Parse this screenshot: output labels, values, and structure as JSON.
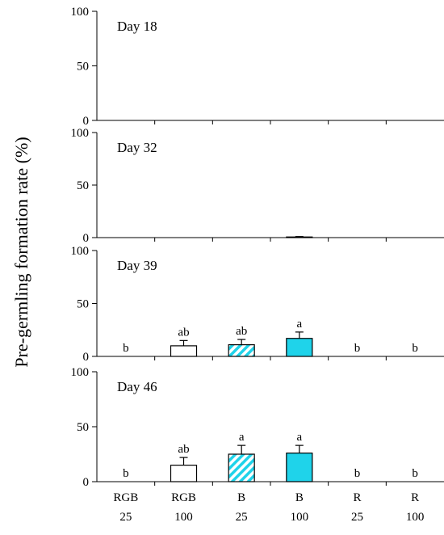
{
  "chart_data": {
    "type": "bar",
    "ylabel": "Pre-germling  formation rate (%)",
    "ylim": [
      0,
      100
    ],
    "yticks": [
      "0",
      "50",
      "100"
    ],
    "categories": [
      {
        "line1": "RGB",
        "line2": "25"
      },
      {
        "line1": "RGB",
        "line2": "100"
      },
      {
        "line1": "B",
        "line2": "25"
      },
      {
        "line1": "B",
        "line2": "100"
      },
      {
        "line1": "R",
        "line2": "25"
      },
      {
        "line1": "R",
        "line2": "100"
      }
    ],
    "bar_styles": [
      "white",
      "white",
      "hatched",
      "solid",
      "white",
      "white"
    ],
    "colors": {
      "cyan": "#1fd3ea",
      "edge": "#000000"
    },
    "panels": [
      {
        "label": "Day 18",
        "values": [
          0,
          0,
          0,
          0,
          0,
          0
        ],
        "errors": [
          0,
          0,
          0,
          0,
          0,
          0
        ],
        "letters": [
          "",
          "",
          "",
          "",
          "",
          ""
        ]
      },
      {
        "label": "Day 32",
        "values": [
          0,
          0,
          0,
          0.6,
          0,
          0
        ],
        "errors": [
          0,
          0,
          0,
          0.4,
          0,
          0
        ],
        "letters": [
          "",
          "",
          "",
          "",
          "",
          ""
        ]
      },
      {
        "label": "Day 39",
        "values": [
          0,
          10,
          11,
          17,
          0,
          0
        ],
        "errors": [
          0,
          5,
          5,
          6,
          0,
          0
        ],
        "letters": [
          "b",
          "ab",
          "ab",
          "a",
          "b",
          "b"
        ]
      },
      {
        "label": "Day 46",
        "values": [
          0,
          15,
          25,
          26,
          0,
          0
        ],
        "errors": [
          0,
          7,
          8,
          7,
          0,
          0
        ],
        "letters": [
          "b",
          "ab",
          "a",
          "a",
          "b",
          "b"
        ]
      }
    ]
  }
}
